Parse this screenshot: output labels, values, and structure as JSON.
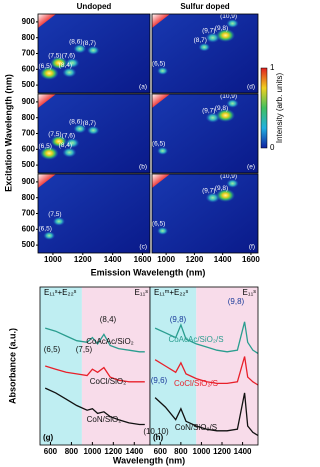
{
  "top": {
    "column_titles": [
      "Undoped",
      "Sulfur doped"
    ],
    "y_label": "Excitation Wavelength (nm)",
    "x_label": "Emission Wavelength (nm)",
    "xlim": [
      900,
      1650
    ],
    "ylim": [
      450,
      950
    ],
    "xticks": [
      1000,
      1200,
      1400,
      1600
    ],
    "yticks": [
      900,
      800,
      700,
      600,
      500
    ],
    "colorbar": {
      "label": "Intensity (arb. units)",
      "ticks": [
        1,
        0
      ]
    },
    "panels": [
      {
        "tag": "(a)",
        "spots": [
          {
            "label": "(6,5)",
            "x": 975,
            "y": 575,
            "intensity": 0.9
          },
          {
            "label": "(7,5)",
            "x": 1040,
            "y": 640,
            "intensity": 0.8
          },
          {
            "label": "(7,6)",
            "x": 1130,
            "y": 640,
            "intensity": 0.5
          },
          {
            "label": "(8,4)",
            "x": 1110,
            "y": 580,
            "intensity": 0.5
          },
          {
            "label": "(8,6)",
            "x": 1180,
            "y": 730,
            "intensity": 0.4
          },
          {
            "label": "(8,7)",
            "x": 1270,
            "y": 720,
            "intensity": 0.35
          }
        ]
      },
      {
        "tag": "(d)",
        "spots": [
          {
            "label": "(10,9)",
            "x": 1470,
            "y": 890,
            "intensity": 0.35
          },
          {
            "label": "(9,7)",
            "x": 1330,
            "y": 800,
            "intensity": 0.5
          },
          {
            "label": "(9,8)",
            "x": 1420,
            "y": 815,
            "intensity": 0.9
          },
          {
            "label": "(8,7)",
            "x": 1270,
            "y": 740,
            "intensity": 0.3
          },
          {
            "label": "(6,5)",
            "x": 975,
            "y": 590,
            "intensity": 0.25
          }
        ]
      },
      {
        "tag": "(b)",
        "spots": [
          {
            "label": "(6,5)",
            "x": 975,
            "y": 575,
            "intensity": 0.9
          },
          {
            "label": "(7,5)",
            "x": 1040,
            "y": 650,
            "intensity": 0.7
          },
          {
            "label": "(7,6)",
            "x": 1130,
            "y": 640,
            "intensity": 0.5
          },
          {
            "label": "(8,4)",
            "x": 1110,
            "y": 580,
            "intensity": 0.5
          },
          {
            "label": "(8,6)",
            "x": 1180,
            "y": 730,
            "intensity": 0.4
          },
          {
            "label": "(8,7)",
            "x": 1270,
            "y": 720,
            "intensity": 0.35
          }
        ]
      },
      {
        "tag": "(e)",
        "spots": [
          {
            "label": "(10,9)",
            "x": 1470,
            "y": 890,
            "intensity": 0.35
          },
          {
            "label": "(9,7)",
            "x": 1330,
            "y": 800,
            "intensity": 0.5
          },
          {
            "label": "(9,8)",
            "x": 1420,
            "y": 815,
            "intensity": 0.9
          },
          {
            "label": "(6,5)",
            "x": 975,
            "y": 590,
            "intensity": 0.25
          }
        ]
      },
      {
        "tag": "(c)",
        "spots": [
          {
            "label": "(7,5)",
            "x": 1040,
            "y": 650,
            "intensity": 0.35
          },
          {
            "label": "(6,5)",
            "x": 975,
            "y": 560,
            "intensity": 0.3
          }
        ]
      },
      {
        "tag": "(f)",
        "spots": [
          {
            "label": "(10,9)",
            "x": 1470,
            "y": 890,
            "intensity": 0.35
          },
          {
            "label": "(9,7)",
            "x": 1330,
            "y": 800,
            "intensity": 0.5
          },
          {
            "label": "(9,8)",
            "x": 1420,
            "y": 815,
            "intensity": 0.9
          },
          {
            "label": "(6,5)",
            "x": 975,
            "y": 590,
            "intensity": 0.25
          }
        ]
      }
    ]
  },
  "chart_data": [
    {
      "type": "line",
      "tag": "(g)",
      "y_label": "Absorbance (a.u.)",
      "x_label": "Wavelength (nm)",
      "xlim": [
        500,
        1550
      ],
      "ylim": [
        0,
        10
      ],
      "xticks": [
        600,
        800,
        1000,
        1200,
        1400
      ],
      "regions": [
        {
          "label": "E₁₁ˢ+E₂₂ˢ",
          "from": 500,
          "to": 900,
          "color": "#bfeef2"
        },
        {
          "label": "E₁₁ˢ",
          "from": 900,
          "to": 1550,
          "color": "#f8dcea"
        }
      ],
      "x": [
        550,
        650,
        750,
        850,
        950,
        1000,
        1050,
        1110,
        1170,
        1250,
        1350,
        1450,
        1500
      ],
      "series": [
        {
          "name": "CoAcAc/SiO₂",
          "color": "#2a9d8f",
          "values": [
            7.4,
            7.2,
            6.9,
            6.6,
            6.5,
            6.8,
            6.4,
            7.0,
            6.3,
            6.1,
            6.0,
            5.9,
            5.9
          ]
        },
        {
          "name": "CoCl/SiO₂",
          "color": "#e8202a",
          "values": [
            5.0,
            4.8,
            4.6,
            4.5,
            4.4,
            4.8,
            4.6,
            4.9,
            4.3,
            4.1,
            4.0,
            4.0,
            4.0
          ]
        },
        {
          "name": "CoN/SiO₂",
          "color": "#111111",
          "values": [
            3.6,
            3.3,
            2.9,
            2.5,
            2.2,
            2.3,
            2.0,
            2.1,
            1.8,
            1.6,
            1.4,
            1.3,
            1.3
          ]
        }
      ],
      "annotations": [
        "(8,4)",
        "(6,5)",
        "(7,5)"
      ]
    },
    {
      "type": "line",
      "tag": "(h)",
      "xlim": [
        500,
        1550
      ],
      "ylim": [
        0,
        10
      ],
      "xticks": [
        600,
        800,
        1000,
        1200,
        1400
      ],
      "regions": [
        {
          "label": "E₁₁ᵐ+E₂₂ˢ",
          "from": 500,
          "to": 950,
          "color": "#bfeef2"
        },
        {
          "label": "E₁₁ˢ",
          "from": 950,
          "to": 1550,
          "color": "#f8dcea"
        }
      ],
      "x": [
        550,
        650,
        750,
        800,
        850,
        950,
        1050,
        1150,
        1250,
        1350,
        1420,
        1450,
        1500,
        1550
      ],
      "series": [
        {
          "name": "CoAcAc/SiO₂/S",
          "color": "#2a9d8f",
          "values": [
            7.4,
            7.1,
            6.8,
            7.6,
            6.7,
            6.4,
            6.2,
            6.0,
            5.9,
            6.0,
            7.8,
            6.5,
            6.0,
            5.8
          ]
        },
        {
          "name": "CoCl/SiO₂/S",
          "color": "#e8202a",
          "values": [
            5.4,
            5.0,
            4.6,
            5.2,
            4.5,
            4.2,
            4.0,
            3.9,
            3.9,
            4.0,
            5.6,
            4.3,
            4.0,
            3.8
          ]
        },
        {
          "name": "CoN/SiO₂/S",
          "color": "#111111",
          "values": [
            3.0,
            2.4,
            1.6,
            2.3,
            1.5,
            1.2,
            1.0,
            0.9,
            0.9,
            1.0,
            3.3,
            1.2,
            0.8,
            0.6
          ]
        }
      ],
      "annotations": [
        "(9,8)",
        "(9,8)",
        "(9,6)",
        "(10,10)"
      ]
    }
  ]
}
